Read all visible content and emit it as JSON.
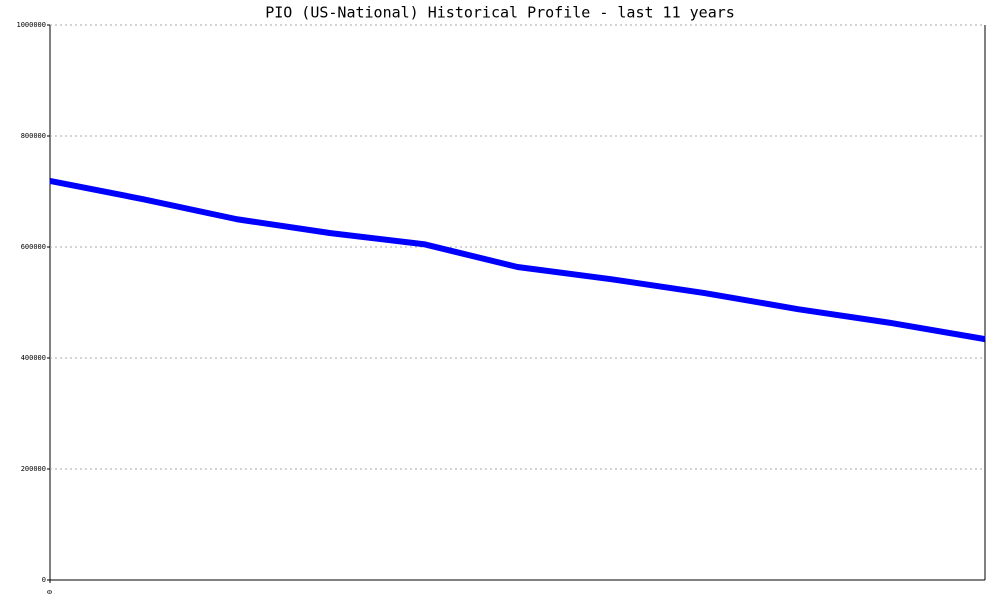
{
  "chart_data": {
    "type": "line",
    "title": "PIO (US-National) Historical Profile - last 11 years",
    "x": [
      0,
      1,
      2,
      3,
      4,
      5,
      6,
      7,
      8,
      9,
      10
    ],
    "series": [
      {
        "color": "#0000ff",
        "values": [
          719000,
          686000,
          650000,
          625000,
          605000,
          564000,
          542000,
          517000,
          488000,
          463000,
          434000
        ]
      }
    ],
    "xlim": [
      0,
      10
    ],
    "xticks": [
      0
    ],
    "ylim": [
      0,
      1000000
    ],
    "yticks": [
      0,
      200000,
      400000,
      600000,
      800000,
      1000000
    ],
    "grid": true
  }
}
